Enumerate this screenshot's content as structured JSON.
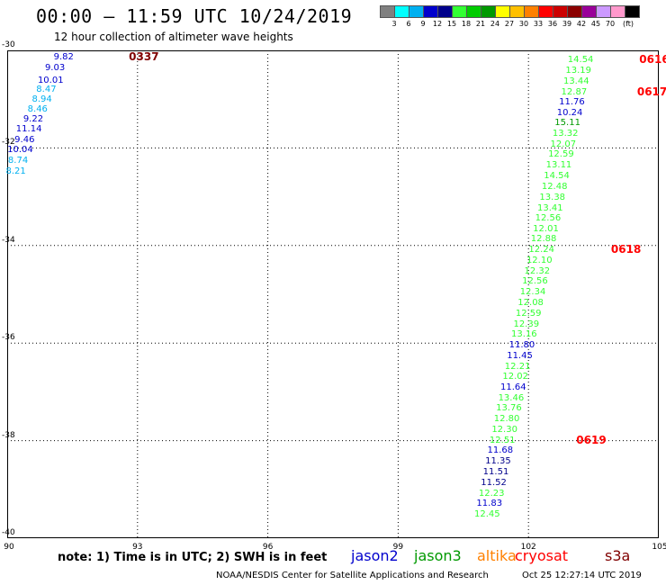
{
  "title": "00:00 — 11:59 UTC 10/24/2019",
  "subtitle": "12 hour collection of altimeter wave heights",
  "colorbar": {
    "unit": "(ft)",
    "colors": [
      "#808080",
      "#00ffff",
      "#00b0f0",
      "#0000cd",
      "#00008b",
      "#33ff33",
      "#00cc00",
      "#009900",
      "#ffff00",
      "#ffc000",
      "#ff8000",
      "#ff0000",
      "#cc0000",
      "#8b0000",
      "#990099",
      "#cc99ff",
      "#ff99cc",
      "#000000"
    ],
    "labels": [
      "3",
      "6",
      "9",
      "12",
      "15",
      "18",
      "21",
      "24",
      "27",
      "30",
      "33",
      "36",
      "39",
      "42",
      "45",
      "70"
    ]
  },
  "axes": {
    "y_ticks": [
      "-30",
      "-32",
      "-34",
      "-36",
      "-38",
      "-40"
    ],
    "x_ticks": [
      "90",
      "93",
      "96",
      "99",
      "102",
      "105"
    ]
  },
  "map": {
    "lon_range": [
      90,
      105
    ],
    "lat_range": [
      -30,
      -40
    ]
  },
  "chart_data": {
    "type": "scatter",
    "title": "00:00 — 11:59 UTC 10/24/2019",
    "xlabel": "",
    "ylabel": "",
    "xlim": [
      90,
      105
    ],
    "ylim": [
      -40,
      -30
    ],
    "observations": [
      {
        "lon": 91.3,
        "lat": -30.12,
        "value": "9.82",
        "color": "#0000cd"
      },
      {
        "lon": 91.1,
        "lat": -30.35,
        "value": "9.03",
        "color": "#0000cd"
      },
      {
        "lon": 91.0,
        "lat": -30.6,
        "value": "10.01",
        "color": "#0000cd"
      },
      {
        "lon": 90.9,
        "lat": -30.8,
        "value": "8.47",
        "color": "#00b0f0"
      },
      {
        "lon": 90.8,
        "lat": -31.0,
        "value": "8.94",
        "color": "#00b0f0"
      },
      {
        "lon": 90.7,
        "lat": -31.2,
        "value": "8.46",
        "color": "#00b0f0"
      },
      {
        "lon": 90.6,
        "lat": -31.4,
        "value": "9.22",
        "color": "#0000cd"
      },
      {
        "lon": 90.5,
        "lat": -31.6,
        "value": "11.14",
        "color": "#0000cd"
      },
      {
        "lon": 90.4,
        "lat": -31.82,
        "value": "9.46",
        "color": "#0000cd"
      },
      {
        "lon": 90.3,
        "lat": -32.03,
        "value": "10.04",
        "color": "#0000cd"
      },
      {
        "lon": 90.25,
        "lat": -32.25,
        "value": "8.74",
        "color": "#00b0f0"
      },
      {
        "lon": 90.2,
        "lat": -32.48,
        "value": "8.21",
        "color": "#00b0f0"
      },
      {
        "lon": 103.2,
        "lat": -30.18,
        "value": "14.54",
        "color": "#33ff33"
      },
      {
        "lon": 103.15,
        "lat": -30.4,
        "value": "13.19",
        "color": "#33ff33"
      },
      {
        "lon": 103.1,
        "lat": -30.62,
        "value": "13.44",
        "color": "#33ff33"
      },
      {
        "lon": 103.05,
        "lat": -30.84,
        "value": "12.87",
        "color": "#33ff33"
      },
      {
        "lon": 103.0,
        "lat": -31.05,
        "value": "11.76",
        "color": "#0000cd"
      },
      {
        "lon": 102.95,
        "lat": -31.27,
        "value": "10.24",
        "color": "#0000cd"
      },
      {
        "lon": 102.9,
        "lat": -31.48,
        "value": "15.11",
        "color": "#009900"
      },
      {
        "lon": 102.85,
        "lat": -31.7,
        "value": "13.32",
        "color": "#33ff33"
      },
      {
        "lon": 102.8,
        "lat": -31.92,
        "value": "12.07",
        "color": "#33ff33"
      },
      {
        "lon": 102.75,
        "lat": -32.13,
        "value": "12.59",
        "color": "#33ff33"
      },
      {
        "lon": 102.7,
        "lat": -32.35,
        "value": "13.11",
        "color": "#33ff33"
      },
      {
        "lon": 102.65,
        "lat": -32.57,
        "value": "14.54",
        "color": "#33ff33"
      },
      {
        "lon": 102.6,
        "lat": -32.78,
        "value": "12.48",
        "color": "#33ff33"
      },
      {
        "lon": 102.55,
        "lat": -33.0,
        "value": "13.38",
        "color": "#33ff33"
      },
      {
        "lon": 102.5,
        "lat": -33.22,
        "value": "13.41",
        "color": "#33ff33"
      },
      {
        "lon": 102.45,
        "lat": -33.43,
        "value": "12.56",
        "color": "#33ff33"
      },
      {
        "lon": 102.4,
        "lat": -33.65,
        "value": "12.01",
        "color": "#33ff33"
      },
      {
        "lon": 102.35,
        "lat": -33.86,
        "value": "12.88",
        "color": "#33ff33"
      },
      {
        "lon": 102.3,
        "lat": -34.08,
        "value": "12.24",
        "color": "#33ff33"
      },
      {
        "lon": 102.25,
        "lat": -34.3,
        "value": "12.10",
        "color": "#33ff33"
      },
      {
        "lon": 102.2,
        "lat": -34.52,
        "value": "12.32",
        "color": "#33ff33"
      },
      {
        "lon": 102.15,
        "lat": -34.73,
        "value": "12.56",
        "color": "#33ff33"
      },
      {
        "lon": 102.1,
        "lat": -34.95,
        "value": "12.34",
        "color": "#33ff33"
      },
      {
        "lon": 102.05,
        "lat": -35.17,
        "value": "12.08",
        "color": "#33ff33"
      },
      {
        "lon": 102.0,
        "lat": -35.38,
        "value": "12.59",
        "color": "#33ff33"
      },
      {
        "lon": 101.95,
        "lat": -35.6,
        "value": "12.39",
        "color": "#33ff33"
      },
      {
        "lon": 101.9,
        "lat": -35.82,
        "value": "13.16",
        "color": "#33ff33"
      },
      {
        "lon": 101.85,
        "lat": -36.03,
        "value": "11.80",
        "color": "#0000cd"
      },
      {
        "lon": 101.8,
        "lat": -36.25,
        "value": "11.45",
        "color": "#0000cd"
      },
      {
        "lon": 101.75,
        "lat": -36.47,
        "value": "12.21",
        "color": "#33ff33"
      },
      {
        "lon": 101.7,
        "lat": -36.68,
        "value": "12.02",
        "color": "#33ff33"
      },
      {
        "lon": 101.65,
        "lat": -36.9,
        "value": "11.64",
        "color": "#0000cd"
      },
      {
        "lon": 101.6,
        "lat": -37.12,
        "value": "13.46",
        "color": "#33ff33"
      },
      {
        "lon": 101.55,
        "lat": -37.33,
        "value": "13.76",
        "color": "#33ff33"
      },
      {
        "lon": 101.5,
        "lat": -37.55,
        "value": "12.80",
        "color": "#33ff33"
      },
      {
        "lon": 101.45,
        "lat": -37.77,
        "value": "12.30",
        "color": "#33ff33"
      },
      {
        "lon": 101.4,
        "lat": -37.98,
        "value": "12.51",
        "color": "#33ff33"
      },
      {
        "lon": 101.35,
        "lat": -38.2,
        "value": "11.68",
        "color": "#0000cd"
      },
      {
        "lon": 101.3,
        "lat": -38.42,
        "value": "11.35",
        "color": "#00008b"
      },
      {
        "lon": 101.25,
        "lat": -38.63,
        "value": "11.51",
        "color": "#00008b"
      },
      {
        "lon": 101.2,
        "lat": -38.85,
        "value": "11.52",
        "color": "#00008b"
      },
      {
        "lon": 101.15,
        "lat": -39.07,
        "value": "12.23",
        "color": "#33ff33"
      },
      {
        "lon": 101.1,
        "lat": -39.28,
        "value": "11.83",
        "color": "#0000cd"
      },
      {
        "lon": 101.05,
        "lat": -39.5,
        "value": "12.45",
        "color": "#33ff33"
      }
    ],
    "time_labels": [
      {
        "lon": 92.8,
        "lat": -30.12,
        "value": "0337",
        "color": "#800000"
      },
      {
        "lon": 104.55,
        "lat": -30.18,
        "value": "0616",
        "color": "#ff0000"
      },
      {
        "lon": 104.5,
        "lat": -30.84,
        "value": "0617",
        "color": "#ff0000"
      },
      {
        "lon": 103.9,
        "lat": -34.08,
        "value": "0618",
        "color": "#ff0000"
      },
      {
        "lon": 103.1,
        "lat": -37.98,
        "value": "0619",
        "color": "#ff0000"
      }
    ]
  },
  "note": "note: 1) Time is in UTC; 2) SWH is in feet",
  "legend": [
    {
      "label": "jason2",
      "color": "#0000cd"
    },
    {
      "label": "jason3",
      "color": "#009900"
    },
    {
      "label": "altika",
      "color": "#ff8000"
    },
    {
      "label": "cryosat",
      "color": "#ff0000"
    },
    {
      "label": "s3a",
      "color": "#800000"
    }
  ],
  "footer": {
    "source": "NOAA/NESDIS Center for Satellite Applications and Research",
    "timestamp": "Oct 25 12:27:14 UTC 2019"
  }
}
